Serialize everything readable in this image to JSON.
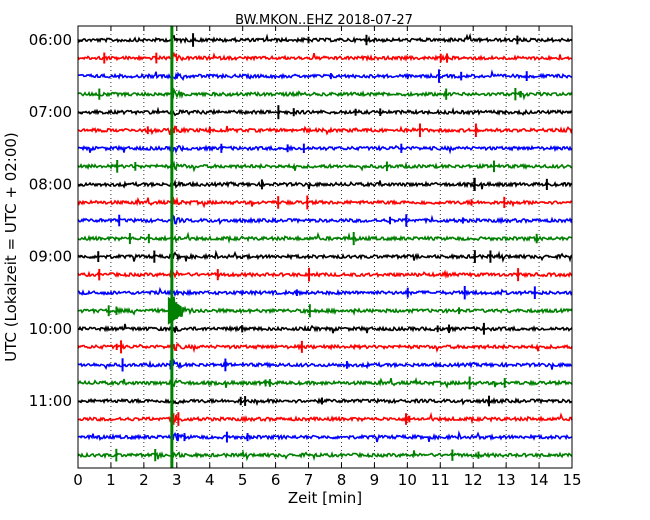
{
  "chart_data": {
    "type": "line",
    "title": "BW.MKON..EHZ 2018-07-27",
    "xlabel": "Zeit  [min]",
    "ylabel": "UTC (Lokalzeit = UTC + 02:00)",
    "xlim": [
      0,
      15
    ],
    "x_ticks": [
      "0",
      "1",
      "2",
      "3",
      "4",
      "5",
      "6",
      "7",
      "8",
      "9",
      "10",
      "11",
      "12",
      "13",
      "14",
      "15"
    ],
    "y_tick_labels": [
      "06:00",
      "07:00",
      "08:00",
      "09:00",
      "10:00",
      "11:00"
    ],
    "grid": "dotted vertical at each minute",
    "trace_interval_min": 15,
    "first_trace": "06:00",
    "trace_count": 24,
    "trace_colors": [
      "#000000",
      "#ff0000",
      "#0000ff",
      "#008000"
    ],
    "event": {
      "time_min": 2.85,
      "color": "#008000",
      "strongest_trace": "09:45"
    }
  }
}
